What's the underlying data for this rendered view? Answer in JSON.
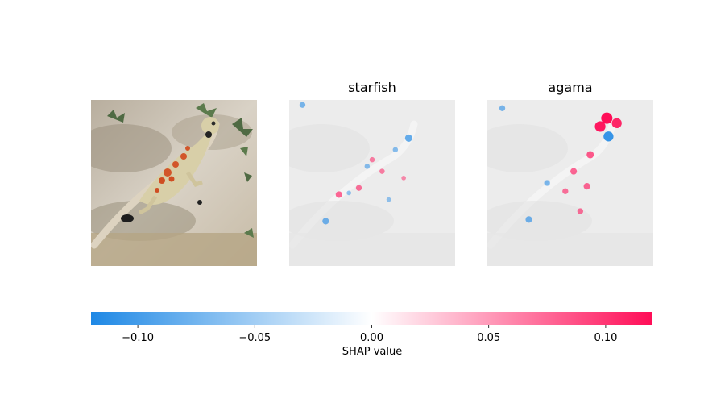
{
  "chart_data": {
    "type": "heatmap",
    "panels": [
      {
        "title": "",
        "kind": "input-image"
      },
      {
        "title": "starfish",
        "kind": "shap-map",
        "hotspots": [
          {
            "u": 0.72,
            "v": 0.23,
            "value": -0.06
          },
          {
            "u": 0.5,
            "v": 0.36,
            "value": 0.03
          },
          {
            "u": 0.42,
            "v": 0.53,
            "value": 0.04
          },
          {
            "u": 0.3,
            "v": 0.57,
            "value": 0.05
          },
          {
            "u": 0.56,
            "v": 0.43,
            "value": 0.03
          },
          {
            "u": 0.22,
            "v": 0.73,
            "value": -0.05
          },
          {
            "u": 0.64,
            "v": 0.3,
            "value": -0.03
          },
          {
            "u": 0.47,
            "v": 0.4,
            "value": -0.03
          },
          {
            "u": 0.36,
            "v": 0.56,
            "value": -0.02
          },
          {
            "u": 0.69,
            "v": 0.47,
            "value": 0.02
          },
          {
            "u": 0.08,
            "v": 0.03,
            "value": -0.04
          },
          {
            "u": 0.6,
            "v": 0.6,
            "value": -0.02
          }
        ]
      },
      {
        "title": "agama",
        "kind": "shap-map",
        "hotspots": [
          {
            "u": 0.72,
            "v": 0.11,
            "value": 0.12
          },
          {
            "u": 0.78,
            "v": 0.14,
            "value": 0.1
          },
          {
            "u": 0.68,
            "v": 0.16,
            "value": 0.11
          },
          {
            "u": 0.73,
            "v": 0.22,
            "value": -0.1
          },
          {
            "u": 0.62,
            "v": 0.33,
            "value": 0.06
          },
          {
            "u": 0.52,
            "v": 0.43,
            "value": 0.05
          },
          {
            "u": 0.6,
            "v": 0.52,
            "value": 0.05
          },
          {
            "u": 0.47,
            "v": 0.55,
            "value": 0.04
          },
          {
            "u": 0.36,
            "v": 0.5,
            "value": -0.04
          },
          {
            "u": 0.25,
            "v": 0.72,
            "value": -0.05
          },
          {
            "u": 0.56,
            "v": 0.67,
            "value": 0.04
          },
          {
            "u": 0.09,
            "v": 0.05,
            "value": -0.04
          }
        ]
      }
    ],
    "colorbar": {
      "label": "SHAP value",
      "range": [
        -0.12,
        0.12
      ],
      "ticks": [
        -0.1,
        -0.05,
        0.0,
        0.05,
        0.1
      ],
      "tick_labels": [
        "−0.10",
        "−0.05",
        "0.00",
        "0.05",
        "0.10"
      ],
      "colors": {
        "negative": "#1e88e5",
        "neutral": "#ffffff",
        "positive": "#ff0d57"
      }
    }
  }
}
